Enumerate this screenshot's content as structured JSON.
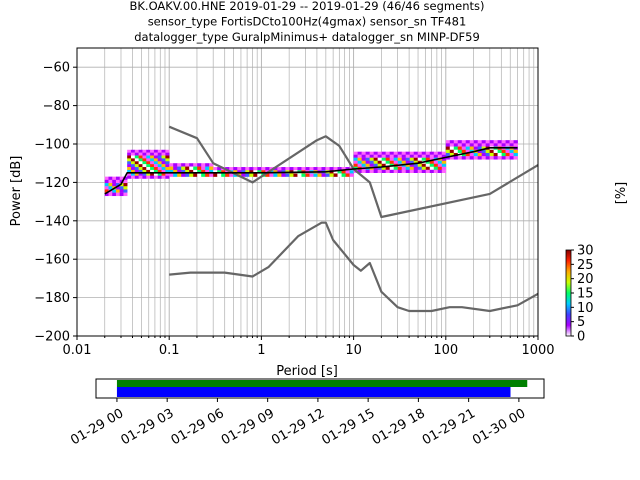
{
  "title_lines": [
    "BK.OAKV.00.HNE   2019-01-29 -- 2019-01-29  (46/46 segments)",
    "sensor_type FortisDCto100Hz(4gmax) sensor_sn TF481",
    "datalogger_type GuralpMinimus+ datalogger_sn MINP-DF59"
  ],
  "chart_data": [
    {
      "type": "heatmap",
      "xlabel": "Period [s]",
      "ylabel": "Power [dB]",
      "xscale": "log",
      "xlim": [
        0.01,
        1000
      ],
      "ylim": [
        -200,
        -50
      ],
      "x_ticks": [
        0.01,
        0.1,
        1,
        10,
        100,
        1000
      ],
      "x_tick_labels": [
        "0.01",
        "0.1",
        "1",
        "10",
        "100",
        "1000"
      ],
      "y_ticks": [
        -200,
        -180,
        -160,
        -140,
        -120,
        -100,
        -80,
        -60
      ],
      "y_tick_labels": [
        "−200",
        "−180",
        "−160",
        "−140",
        "−120",
        "−100",
        "−80",
        "−60"
      ],
      "grid": true,
      "colorbar": {
        "label": "[%]",
        "min": 0,
        "max": 30,
        "ticks": [
          0,
          5,
          10,
          15,
          20,
          25,
          30
        ],
        "colormap": "pqlx"
      },
      "series": [
        {
          "points": [
            [
              0.1,
              -91
            ],
            [
              0.2,
              -97
            ],
            [
              0.3,
              -110
            ],
            [
              0.8,
              -120
            ],
            [
              4,
              -98
            ],
            [
              5,
              -96
            ],
            [
              7,
              -101
            ],
            [
              10,
              -113
            ],
            [
              15,
              -120
            ],
            [
              20,
              -138
            ],
            [
              300,
              -126
            ],
            [
              1000,
              -111
            ]
          ]
        },
        {
          "points": [
            [
              0.1,
              -168
            ],
            [
              0.17,
              -167
            ],
            [
              0.4,
              -167
            ],
            [
              0.8,
              -169
            ],
            [
              1.2,
              -164
            ],
            [
              2.5,
              -148
            ],
            [
              4.5,
              -141
            ],
            [
              5,
              -141
            ],
            [
              6,
              -150
            ],
            [
              10,
              -163
            ],
            [
              12,
              -166
            ],
            [
              15,
              -162
            ],
            [
              20,
              -177
            ],
            [
              30,
              -185
            ],
            [
              40,
              -187
            ],
            [
              70,
              -187
            ],
            [
              110,
              -185
            ],
            [
              150,
              -185
            ],
            [
              300,
              -187
            ],
            [
              600,
              -184
            ],
            [
              1000,
              -178
            ]
          ]
        },
        {
          "points": [
            [
              0.02,
              -126
            ],
            [
              0.03,
              -121
            ],
            [
              0.035,
              -115
            ],
            [
              0.5,
              -115
            ],
            [
              1,
              -115
            ],
            [
              5,
              -114.5
            ],
            [
              10,
              -113
            ],
            [
              20,
              -112
            ],
            [
              50,
              -110
            ],
            [
              100,
              -107
            ],
            [
              200,
              -104
            ],
            [
              300,
              -102
            ],
            [
              600,
              -102
            ]
          ]
        }
      ],
      "density_bands": [
        {
          "x0": 0.02,
          "x1": 0.035,
          "y0": -127,
          "y1": -117
        },
        {
          "x0": 0.035,
          "x1": 0.1,
          "y0": -118,
          "y1": -103
        },
        {
          "x0": 0.1,
          "x1": 0.3,
          "y0": -117,
          "y1": -110
        },
        {
          "x0": 0.3,
          "x1": 10,
          "y0": -117,
          "y1": -112
        },
        {
          "x0": 10,
          "x1": 100,
          "y0": -115,
          "y1": -104
        },
        {
          "x0": 100,
          "x1": 600,
          "y0": -108,
          "y1": -98
        }
      ]
    },
    {
      "type": "bar",
      "x_tick_labels": [
        "01-29 00",
        "01-29 03",
        "01-29 06",
        "01-29 09",
        "01-29 12",
        "01-29 15",
        "01-29 18",
        "01-29 21",
        "01-30 00"
      ],
      "xlim": [
        -1.25,
        25.5
      ],
      "series": [
        {
          "color": "#008000",
          "start_h": 0,
          "end_h": 24.5
        },
        {
          "color": "#0000ff",
          "start_h": 0,
          "end_h": 23.5
        }
      ]
    }
  ]
}
